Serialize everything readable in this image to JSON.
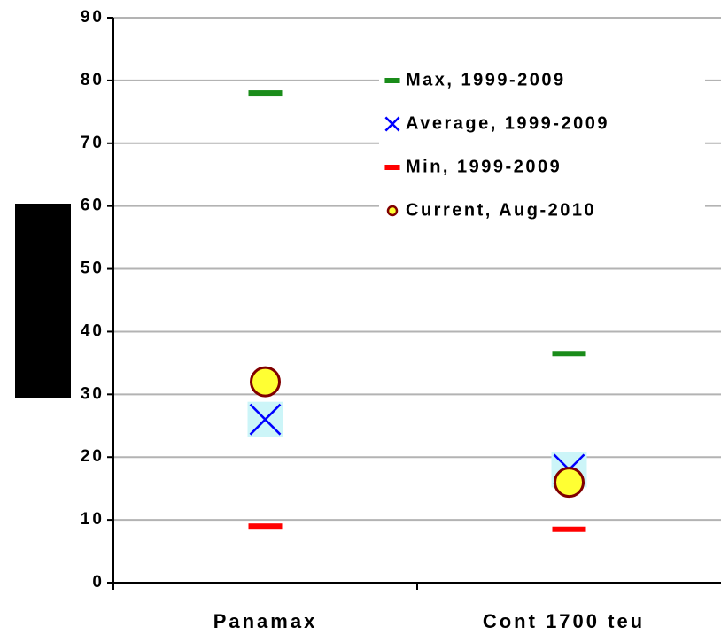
{
  "chart_data": {
    "type": "scatter",
    "categories": [
      "Panamax",
      "Cont 1700 teu"
    ],
    "series": [
      {
        "name": "Max, 1999-2009",
        "color": "#1a8c1a",
        "marker": "dash",
        "values": [
          78,
          36.5
        ]
      },
      {
        "name": "Average, 1999-2009",
        "color": "#0000ff",
        "marker": "x",
        "values": [
          26,
          18
        ]
      },
      {
        "name": "Min, 1999-2009",
        "color": "#ff0000",
        "marker": "dash",
        "values": [
          9,
          8.5
        ]
      },
      {
        "name": "Current, Aug-2010",
        "color": "#ffff33",
        "marker": "circle",
        "values": [
          32,
          16
        ]
      }
    ],
    "ylim": [
      0,
      90
    ],
    "yticks": [
      0,
      10,
      20,
      30,
      40,
      50,
      60,
      70,
      80,
      90
    ],
    "grid": true,
    "legend": "top-right"
  }
}
